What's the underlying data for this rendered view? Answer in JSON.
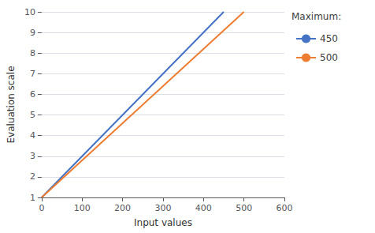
{
  "chart_data": {
    "type": "line",
    "xlabel": "Input values",
    "ylabel": "Evaluation scale",
    "legend_title": "Maximum:",
    "legend": "right",
    "grid": true,
    "xlim": [
      0,
      600
    ],
    "ylim": [
      1,
      10
    ],
    "xticks": [
      0,
      100,
      200,
      300,
      400,
      500,
      600
    ],
    "yticks": [
      1,
      2,
      3,
      4,
      5,
      6,
      7,
      8,
      9,
      10
    ],
    "series": [
      {
        "name": "450",
        "color": "#4472C4",
        "x": [
          0,
          450
        ],
        "values": [
          1,
          10
        ]
      },
      {
        "name": "500",
        "color": "#ED7D31",
        "x": [
          0,
          500
        ],
        "values": [
          1,
          10
        ]
      }
    ]
  }
}
